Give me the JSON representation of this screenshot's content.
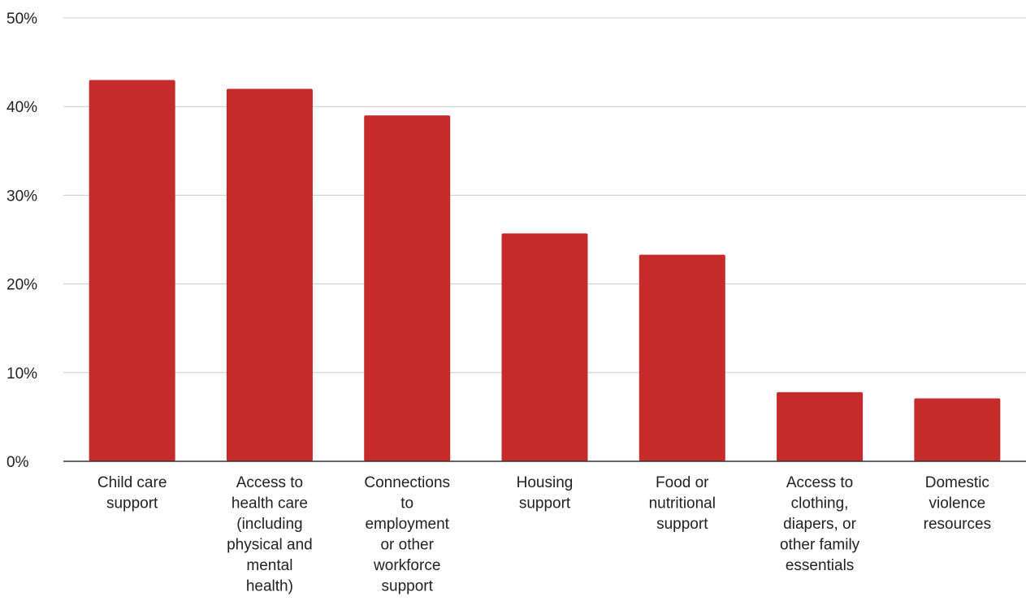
{
  "chart_data": {
    "type": "bar",
    "title": "",
    "xlabel": "",
    "ylabel": "",
    "ylim": [
      0,
      50
    ],
    "yticks": [
      0,
      10,
      20,
      30,
      40,
      50
    ],
    "ytick_labels": [
      "0%",
      "10%",
      "20%",
      "30%",
      "40%",
      "50%"
    ],
    "grid": true,
    "legend": "none",
    "categories": [
      [
        "Child care",
        "support"
      ],
      [
        "Access to",
        "health care",
        "(including",
        "physical and",
        "mental",
        "health)"
      ],
      [
        "Connections",
        "to",
        "employment",
        "or other",
        "workforce",
        "support"
      ],
      [
        "Housing",
        "support"
      ],
      [
        "Food or",
        "nutritional",
        "support"
      ],
      [
        "Access to",
        "clothing,",
        "diapers, or",
        "other family",
        "essentials"
      ],
      [
        "Domestic",
        "violence",
        "resources"
      ]
    ],
    "values": [
      43,
      42,
      39,
      25.7,
      23.3,
      7.8,
      7.1
    ],
    "colors": {
      "bar": "#c62b2b",
      "grid": "#cccccc",
      "axis": "#333333",
      "text": "#222222"
    }
  }
}
